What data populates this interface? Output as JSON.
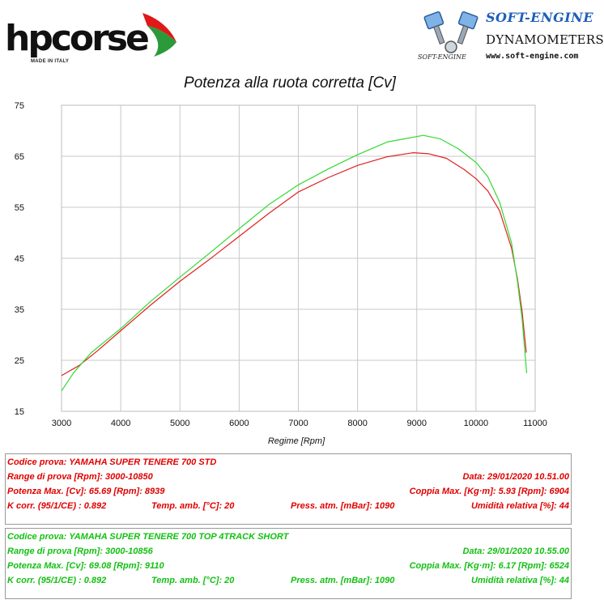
{
  "header": {
    "hp_brand": "hpcorse",
    "hp_tagline": "MADE IN ITALY",
    "se_title": "SOFT-ENGINE",
    "se_subtitle": "DYNAMOMETERS",
    "se_url": "www.soft-engine.com",
    "se_small": "SOFT-ENGINE"
  },
  "colors": {
    "std": "#e02020",
    "short": "#33d933",
    "grid": "#c8c8c8"
  },
  "chart_data": {
    "type": "line",
    "title": "Potenza alla ruota corretta [Cv]",
    "xlabel": "Regime [Rpm]",
    "ylabel": "",
    "xlim": [
      3000,
      11000
    ],
    "ylim": [
      15,
      75
    ],
    "xticks": [
      3000,
      4000,
      5000,
      6000,
      7000,
      8000,
      9000,
      10000,
      11000
    ],
    "yticks": [
      15,
      25,
      35,
      45,
      55,
      65,
      75
    ],
    "grid": true,
    "legend": "none",
    "series": [
      {
        "color": "#e02020",
        "x": [
          3000,
          3300,
          3600,
          4000,
          4500,
          5000,
          5500,
          6000,
          6500,
          7000,
          7500,
          8000,
          8500,
          8939,
          9200,
          9500,
          9800,
          10000,
          10200,
          10400,
          10600,
          10700,
          10780,
          10850
        ],
        "y": [
          22.0,
          24.0,
          26.8,
          30.8,
          35.8,
          40.5,
          44.8,
          49.3,
          53.8,
          58.0,
          60.8,
          63.2,
          64.9,
          65.7,
          65.5,
          64.6,
          62.4,
          60.6,
          58.2,
          54.3,
          47.0,
          41.0,
          34.5,
          26.5
        ]
      },
      {
        "color": "#33d933",
        "x": [
          3000,
          3200,
          3500,
          4000,
          4500,
          5000,
          5500,
          6000,
          6500,
          7000,
          7500,
          8000,
          8500,
          9110,
          9400,
          9700,
          10000,
          10200,
          10400,
          10600,
          10700,
          10780,
          10856
        ],
        "y": [
          19.0,
          22.5,
          26.5,
          31.2,
          36.5,
          41.3,
          46.0,
          50.8,
          55.5,
          59.4,
          62.5,
          65.3,
          67.8,
          69.1,
          68.4,
          66.5,
          63.8,
          61.0,
          56.0,
          48.0,
          40.5,
          33.0,
          22.5
        ]
      }
    ]
  },
  "info": {
    "std": {
      "codice": "Codice prova: YAMAHA SUPER TENERE 700 STD",
      "range": "Range di prova [Rpm]: 3000-10850",
      "data": "Data: 29/01/2020  10.51.00",
      "potenza": "Potenza Max. [Cv]: 65.69  [Rpm]: 8939",
      "coppia": "Coppia Max. [Kg·m]: 5.93  [Rpm]: 6904",
      "kcorr": "K corr. (95/1/CE) : 0.892",
      "temp": "Temp. amb. [°C]: 20",
      "press": "Press. atm. [mBar]: 1090",
      "umid": "Umidità relativa [%]: 44"
    },
    "short": {
      "codice": "Codice prova: YAMAHA SUPER TENERE 700 TOP 4TRACK SHORT",
      "range": "Range di prova [Rpm]: 3000-10856",
      "data": "Data: 29/01/2020  10.55.00",
      "potenza": "Potenza Max. [Cv]: 69.08  [Rpm]: 9110",
      "coppia": "Coppia Max. [Kg·m]: 6.17  [Rpm]: 6524",
      "kcorr": "K corr. (95/1/CE) : 0.892",
      "temp": "Temp. amb. [°C]: 20",
      "press": "Press. atm. [mBar]: 1090",
      "umid": "Umidità relativa [%]: 44"
    }
  }
}
